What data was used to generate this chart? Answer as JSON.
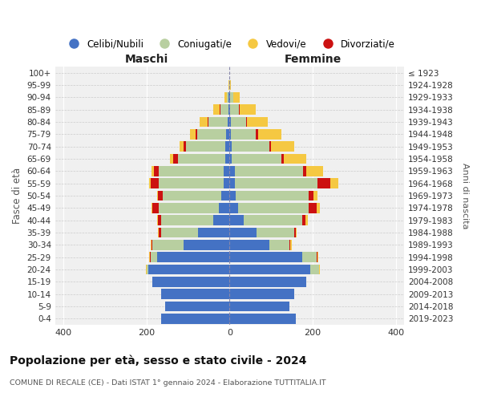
{
  "age_groups": [
    "0-4",
    "5-9",
    "10-14",
    "15-19",
    "20-24",
    "25-29",
    "30-34",
    "35-39",
    "40-44",
    "45-49",
    "50-54",
    "55-59",
    "60-64",
    "65-69",
    "70-74",
    "75-79",
    "80-84",
    "85-89",
    "90-94",
    "95-99",
    "100+"
  ],
  "birth_years": [
    "2019-2023",
    "2014-2018",
    "2009-2013",
    "2004-2008",
    "1999-2003",
    "1994-1998",
    "1989-1993",
    "1984-1988",
    "1979-1983",
    "1974-1978",
    "1969-1973",
    "1964-1968",
    "1959-1963",
    "1954-1958",
    "1949-1953",
    "1944-1948",
    "1939-1943",
    "1934-1938",
    "1929-1933",
    "1924-1928",
    "≤ 1923"
  ],
  "colors": {
    "celibe": "#4472c4",
    "coniugato": "#b8cfa0",
    "vedovo": "#f5c842",
    "divorziato": "#cc1111"
  },
  "maschi": {
    "celibe": [
      165,
      155,
      165,
      185,
      195,
      175,
      110,
      75,
      40,
      25,
      20,
      15,
      15,
      10,
      10,
      8,
      5,
      2,
      2,
      0,
      0
    ],
    "coniugato": [
      0,
      0,
      0,
      0,
      5,
      15,
      75,
      90,
      125,
      145,
      140,
      155,
      155,
      115,
      95,
      70,
      45,
      20,
      5,
      0,
      0
    ],
    "vedovo": [
      0,
      0,
      0,
      0,
      2,
      2,
      2,
      2,
      2,
      2,
      2,
      3,
      5,
      8,
      10,
      15,
      20,
      15,
      5,
      2,
      0
    ],
    "divorziato": [
      0,
      0,
      0,
      0,
      0,
      2,
      2,
      5,
      8,
      15,
      12,
      20,
      12,
      10,
      5,
      3,
      2,
      2,
      0,
      0,
      0
    ]
  },
  "femmine": {
    "nubile": [
      160,
      145,
      155,
      185,
      195,
      175,
      95,
      65,
      35,
      20,
      15,
      12,
      12,
      5,
      5,
      4,
      4,
      2,
      2,
      0,
      0
    ],
    "coniugata": [
      0,
      0,
      0,
      0,
      20,
      35,
      50,
      90,
      140,
      170,
      175,
      200,
      165,
      120,
      90,
      60,
      35,
      20,
      8,
      2,
      0
    ],
    "vedova": [
      0,
      0,
      0,
      0,
      2,
      2,
      2,
      2,
      5,
      8,
      10,
      20,
      40,
      55,
      55,
      55,
      50,
      40,
      15,
      2,
      0
    ],
    "divorziata": [
      0,
      0,
      0,
      0,
      0,
      2,
      2,
      5,
      8,
      20,
      12,
      30,
      8,
      5,
      5,
      5,
      3,
      2,
      0,
      0,
      0
    ]
  },
  "xlim": 420,
  "title": "Popolazione per età, sesso e stato civile - 2024",
  "subtitle": "COMUNE DI RECALE (CE) - Dati ISTAT 1° gennaio 2024 - Elaborazione TUTTITALIA.IT",
  "xlabel_left": "Maschi",
  "xlabel_right": "Femmine",
  "ylabel": "Fasce di età",
  "ylabel_right": "Anni di nascita",
  "legend_labels": [
    "Celibi/Nubili",
    "Coniugati/e",
    "Vedovi/e",
    "Divorziati/e"
  ],
  "bg_plot": "#f0f0f0",
  "bg_fig": "#ffffff",
  "xticks": [
    -400,
    -200,
    0,
    200,
    400
  ]
}
